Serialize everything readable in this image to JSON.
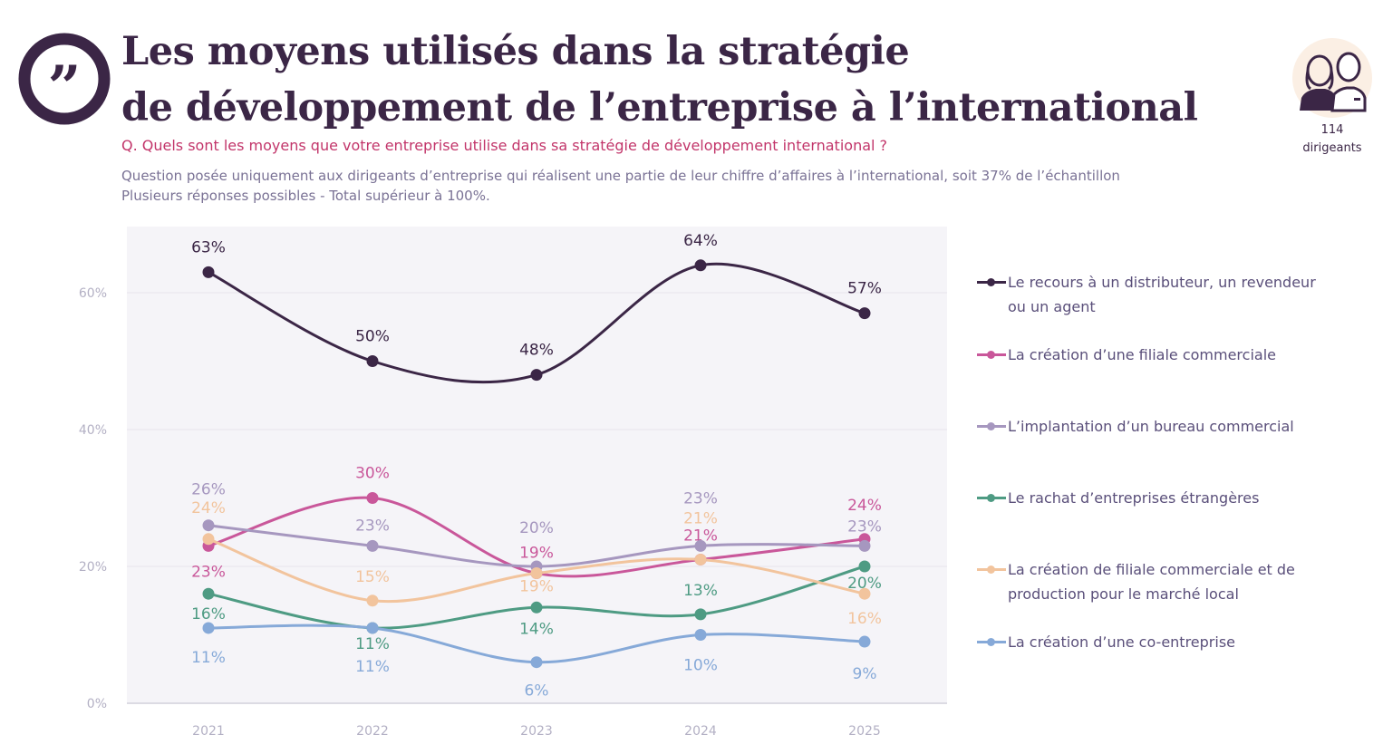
{
  "header": {
    "title_line1": "Les moyens utilisés dans la stratégie",
    "title_line2": "de développement de l’entreprise à l’international",
    "question": "Q. Quels sont les moyens que votre entreprise utilise dans sa stratégie de développement international ?",
    "note_line1": "Question posée uniquement aux dirigeants d’entreprise qui réalisent une partie de leur chiffre d’affaires à l’international, soit 37% de l’échantillon",
    "note_line2": "Plusieurs réponses possibles - Total supérieur à 100%.",
    "quote_icon": "quote-icon",
    "sample_icon": "people-icon",
    "sample_count": "114",
    "sample_label": "dirigeants"
  },
  "chart_data": {
    "type": "line",
    "categories": [
      "2021",
      "2022",
      "2023",
      "2024",
      "2025"
    ],
    "ylim": [
      0,
      70
    ],
    "yticks": [
      "0%",
      "20%",
      "40%",
      "60%"
    ],
    "grid": true,
    "legend_position": "right",
    "series": [
      {
        "name": "Le recours à un distributeur, un revendeur ou un agent",
        "color": "#3b2646",
        "values": [
          63,
          50,
          48,
          64,
          57
        ]
      },
      {
        "name": "La création d’une filiale commerciale",
        "color": "#c9579a",
        "values": [
          23,
          30,
          19,
          21,
          24
        ]
      },
      {
        "name": "L’implantation d’un bureau commercial",
        "color": "#a697bf",
        "values": [
          26,
          23,
          20,
          23,
          23
        ]
      },
      {
        "name": "Le rachat d’entreprises étrangères",
        "color": "#4e9b83",
        "values": [
          16,
          11,
          14,
          13,
          20
        ]
      },
      {
        "name": "La création de filiale commerciale et de production pour le marché local",
        "color": "#f2c49d",
        "values": [
          24,
          15,
          19,
          21,
          16
        ]
      },
      {
        "name": "La création d’une co-entreprise",
        "color": "#86a9d8",
        "values": [
          11,
          11,
          6,
          10,
          9
        ]
      }
    ]
  }
}
